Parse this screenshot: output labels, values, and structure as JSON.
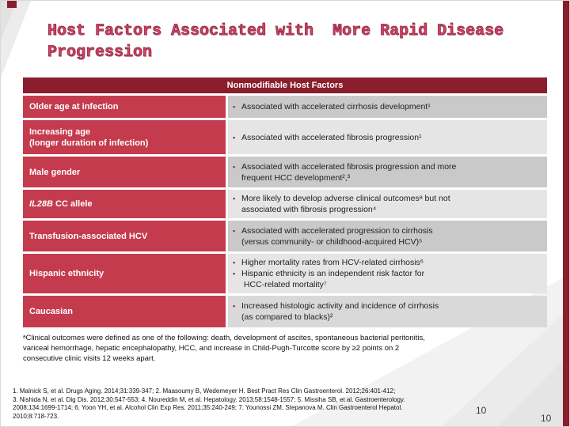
{
  "title": "Host Factors Associated with  More Rapid Disease\nProgression",
  "table": {
    "header": "Nonmodifiable Host Factors",
    "rows": [
      {
        "factor": "Older age at infection",
        "bullets": [
          "Associated with accelerated cirrhosis development¹"
        ]
      },
      {
        "factor": "Increasing age\n(longer duration of infection)",
        "bullets": [
          "Associated with accelerated fibrosis progression¹"
        ]
      },
      {
        "factor": "Male gender",
        "bullets": [
          "Associated with accelerated fibrosis progression and more\nfrequent HCC development²,³"
        ]
      },
      {
        "factor_gene": "IL28B",
        "factor_rest": " CC allele",
        "bullets": [
          "More likely to develop adverse clinical outcomesᵃ but not\nassociated with fibrosis progression⁴"
        ]
      },
      {
        "factor": "Transfusion-associated HCV",
        "bullets": [
          "Associated with accelerated progression to cirrhosis\n(versus community- or childhood-acquired HCV)⁵"
        ]
      },
      {
        "factor": "Hispanic ethnicity",
        "bullets": [
          "Higher mortality rates from HCV-related cirrhosis⁶",
          "Hispanic ethnicity is an independent risk factor for\n HCC-related mortality⁷"
        ]
      },
      {
        "factor": "Caucasian",
        "bullets": [
          "Increased histologic activity and incidence of cirrhosis\n(as compared to blacks)²"
        ]
      }
    ]
  },
  "footnote": "ᵃClinical outcomes were defined as one of the following: death, development of ascites, spontaneous bacterial peritonitis,\nvariceal hemorrhage, hepatic encephalopathy, HCC, and increase in Child-Pugh-Turcotte score by ≥2 points on 2\nconsecutive clinic visits 12 weeks apart.",
  "references": "1. Malnick S, et al. Drugs Aging. 2014;31:339-347; 2. Maasoumy B, Wedemeyer H. Best Pract Res Clin Gastroenterol. 2012;26:401-412;\n3. Nishida N, et al. Dig Dis. 2012;30:547-553; 4. Noureddin M, et al. Hepatology. 2013;58:1548-1557; 5. Missiha SB, et al. Gastroenterology.\n2008;134:1699-1714; 6. Yoon YH, et al. Alcohol Clin Exp Res. 2011;35:240-249; 7. Younossi ZM, Stepanova M. Clin Gastroenterol Hepatol.\n2010;8:718-723.",
  "page_numbers": [
    "10",
    "10"
  ],
  "icons": {
    "bullet": "▪"
  },
  "colors": {
    "accent_maroon": "#8a1e2d",
    "accent_red": "#c43b4e",
    "title_pink": "#ce4368",
    "row_gray_dark": "#c9c9c9",
    "row_gray_light": "#e5e5e5"
  }
}
